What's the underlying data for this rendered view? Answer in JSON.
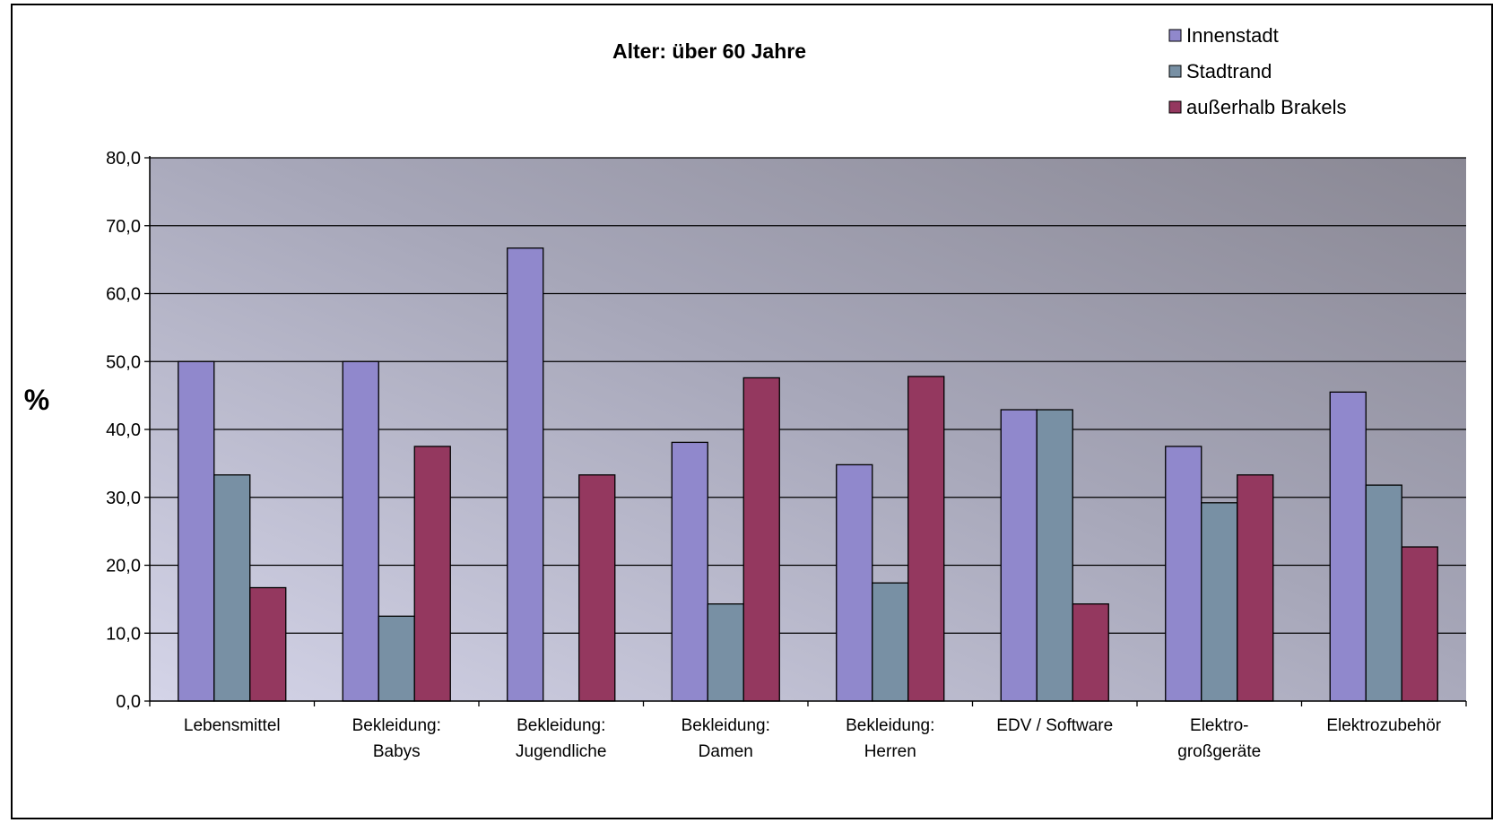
{
  "chart_data": {
    "type": "bar",
    "title": "Alter: über 60 Jahre",
    "ylabel": "%",
    "xlabel": "",
    "ylim": [
      0,
      80
    ],
    "yticks": [
      "0,0",
      "10,0",
      "20,0",
      "30,0",
      "40,0",
      "50,0",
      "60,0",
      "70,0",
      "80,0"
    ],
    "grid": true,
    "legend_position": "top-right",
    "categories": [
      [
        "Lebensmittel"
      ],
      [
        "Bekleidung:",
        "Babys"
      ],
      [
        "Bekleidung:",
        "Jugendliche"
      ],
      [
        "Bekleidung:",
        "Damen"
      ],
      [
        "Bekleidung:",
        "Herren"
      ],
      [
        "EDV / Software"
      ],
      [
        "Elektro-",
        "großgeräte"
      ],
      [
        "Elektrozubehör"
      ]
    ],
    "series": [
      {
        "name": "Innenstadt",
        "color": "#9088cc",
        "values": [
          50.0,
          50.0,
          66.7,
          38.1,
          34.8,
          42.9,
          37.5,
          45.5
        ]
      },
      {
        "name": "Stadtrand",
        "color": "#7890a4",
        "values": [
          33.3,
          12.5,
          0.0,
          14.3,
          17.4,
          42.9,
          29.2,
          31.8
        ]
      },
      {
        "name": "außerhalb Brakels",
        "color": "#94385f",
        "values": [
          16.7,
          37.5,
          33.3,
          47.6,
          47.8,
          14.3,
          33.3,
          22.7
        ]
      }
    ]
  }
}
